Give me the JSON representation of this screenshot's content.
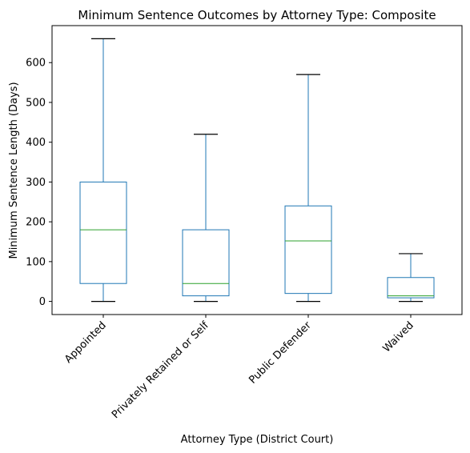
{
  "chart_data": {
    "type": "box",
    "title": "Minimum Sentence Outcomes by Attorney Type: Composite",
    "xlabel": "Attorney Type (District Court)",
    "ylabel": "Minimum Sentence Length (Days)",
    "categories": [
      "Appointed",
      "Privately Retained or Self",
      "Public Defender",
      "Waived"
    ],
    "boxes": [
      {
        "whisker_low": 0,
        "q1": 45,
        "median": 180,
        "q3": 300,
        "whisker_high": 660
      },
      {
        "whisker_low": 0,
        "q1": 14,
        "median": 45,
        "q3": 180,
        "whisker_high": 420
      },
      {
        "whisker_low": 0,
        "q1": 20,
        "median": 152,
        "q3": 240,
        "whisker_high": 570
      },
      {
        "whisker_low": 0,
        "q1": 9,
        "median": 14,
        "q3": 60,
        "whisker_high": 120
      }
    ],
    "ylim": [
      -33,
      693
    ],
    "yticks": [
      0,
      100,
      200,
      300,
      400,
      500,
      600
    ],
    "grid": false,
    "colors": {
      "box": "#1f77b4",
      "median": "#2ca02c",
      "whisker": "#1f77b4",
      "cap": "#000000",
      "axes": "#000000"
    }
  }
}
